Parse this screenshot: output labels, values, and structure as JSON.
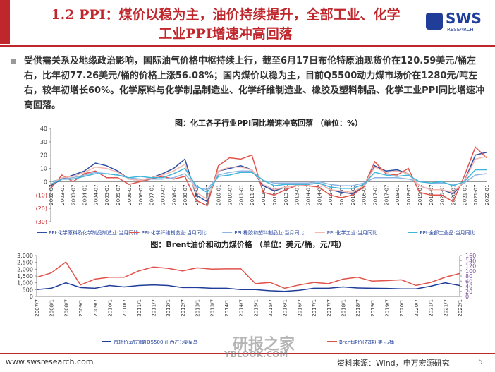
{
  "header": {
    "title_line1": "1.2 PPI：煤价以稳为主，油价持续提升，全部工业、化学",
    "title_line2": "工业PPI增速冲高回落",
    "logo": "SWS",
    "logo_sub": "RESEARCH"
  },
  "body": {
    "paragraph": "受供需关系及地缘政治影响，国际油气价格中枢持续上行，截至6月17日布伦特原油现货价在120.59美元/桶左右，比年初77.26美元/桶的价格上涨56.08%；国内煤价以稳为主，目前Q5500动力煤市场价在1280元/吨左右，较年初增长60%。化学原料与化学制品制造业、化学纤维制造业、橡胶及塑料制品、化学工业PPI同比增速冲高回落。"
  },
  "chart_data": [
    {
      "type": "line",
      "title": "图：化工各子行业PPI同比增速冲高回落 （单位：%）",
      "categories": [
        "2002-07",
        "2003-01",
        "2003-07",
        "2004-01",
        "2004-07",
        "2005-01",
        "2005-07",
        "2006-01",
        "2006-07",
        "2007-01",
        "2007-07",
        "2008-01",
        "2008-07",
        "2009-01",
        "2009-07",
        "2010-01",
        "2010-07",
        "2011-01",
        "2011-07",
        "2012-01",
        "2012-07",
        "2013-01",
        "2013-07",
        "2014-01",
        "2014-07",
        "2015-01",
        "2015-07",
        "2016-01",
        "2016-07",
        "2017-01",
        "2017-07",
        "2018-01",
        "2018-07",
        "2019-01",
        "2019-07",
        "2020-01",
        "2020-07",
        "2021-01",
        "2021-07",
        "2022-01"
      ],
      "ylim": [
        -30,
        40
      ],
      "yticks": [
        40,
        30,
        20,
        10,
        0,
        {
          "value": -10,
          "label": "(10)"
        },
        {
          "value": -20,
          "label": "(20)"
        },
        {
          "value": -30,
          "label": "(30)"
        }
      ],
      "grid": false,
      "series": [
        {
          "name": "PPI:化学原料及化学制品制造业:当月同比",
          "color": "#2f4fa3",
          "values": [
            -3,
            2,
            5,
            8,
            14,
            12,
            8,
            2,
            1,
            3,
            6,
            10,
            17,
            -10,
            -15,
            8,
            10,
            12,
            9,
            -3,
            -7,
            -4,
            -3,
            -2,
            -1,
            -6,
            -8,
            -9,
            -4,
            12,
            8,
            9,
            6,
            -3,
            -6,
            -6,
            -9,
            0,
            20,
            22
          ]
        },
        {
          "name": "PPI:化学纤维制造业:当月同比",
          "color": "#e0524a",
          "values": [
            -5,
            5,
            0,
            6,
            8,
            3,
            3,
            -2,
            0,
            2,
            4,
            2,
            4,
            -14,
            -18,
            12,
            18,
            17,
            20,
            -8,
            -10,
            -6,
            -3,
            -3,
            -4,
            -10,
            -12,
            -10,
            -4,
            15,
            6,
            5,
            10,
            -8,
            -10,
            -10,
            -15,
            4,
            26,
            18
          ]
        },
        {
          "name": "PPI:橡胶和塑料制品业:当月同比",
          "color": "#8fb4e3",
          "values": [
            0,
            2,
            3,
            5,
            7,
            6,
            5,
            3,
            2,
            2,
            2,
            3,
            6,
            -4,
            -6,
            5,
            7,
            8,
            8,
            1,
            -1,
            -1,
            -1,
            -1,
            0,
            -2,
            -3,
            -3,
            -1,
            3,
            3,
            3,
            2,
            0,
            -1,
            -1,
            -2,
            -1,
            5,
            6
          ]
        },
        {
          "name": "PPI:化学工业:当月同比",
          "color": "#f4b8b0",
          "values": [
            -2,
            3,
            4,
            7,
            11,
            10,
            7,
            2,
            1,
            3,
            5,
            8,
            13,
            -8,
            -13,
            8,
            11,
            11,
            9,
            -2,
            -6,
            -4,
            -3,
            -2,
            -1,
            -6,
            -7,
            -8,
            -3,
            11,
            7,
            8,
            6,
            -3,
            -6,
            -6,
            -8,
            0,
            17,
            19
          ]
        },
        {
          "name": "PPI:全部工业品:当月同比",
          "color": "#3fb6d9",
          "values": [
            -2,
            2,
            2,
            4,
            6,
            6,
            5,
            3,
            4,
            3,
            3,
            6,
            10,
            -3,
            -8,
            4,
            5,
            7,
            7,
            1,
            -3,
            -2,
            -2,
            -2,
            -1,
            -4,
            -5,
            -5,
            -2,
            7,
            5,
            4,
            5,
            0,
            -1,
            0,
            -3,
            0,
            9,
            9
          ]
        }
      ]
    },
    {
      "type": "line",
      "title": "图：Brent油价和动力煤价格 （单位：美元/桶，元/吨）",
      "categories": [
        "2007/7",
        "2008/1",
        "2008/7",
        "2009/1",
        "2009/7",
        "2010/1",
        "2010/7",
        "2011/1",
        "2011/7",
        "2012/1",
        "2012/7",
        "2013/1",
        "2013/7",
        "2014/1",
        "2014/7",
        "2015/1",
        "2015/7",
        "2016/1",
        "2016/7",
        "2017/1",
        "2017/7",
        "2018/1",
        "2018/7",
        "2019/1",
        "2019/7",
        "2020/1",
        "2020/7",
        "2021/1",
        "2021/7",
        "2022/1"
      ],
      "ylim": [
        0,
        3000
      ],
      "yticks": [
        0,
        500,
        {
          "value": 1000,
          "label": "1,000"
        },
        {
          "value": 1500,
          "label": "1,500"
        },
        {
          "value": 2000,
          "label": "2,000"
        },
        {
          "value": 2500,
          "label": "2,500"
        },
        {
          "value": 3000,
          "label": "3,000"
        }
      ],
      "y2lim": [
        0,
        160
      ],
      "y2ticks": [
        0,
        20,
        40,
        60,
        80,
        100,
        120,
        140,
        160
      ],
      "grid": false,
      "series": [
        {
          "name": "市场价:动力煤(Q5500,山西产):秦皇岛",
          "color": "#1f3d99",
          "values": [
            500,
            600,
            1000,
            650,
            600,
            800,
            700,
            800,
            850,
            800,
            650,
            650,
            600,
            600,
            500,
            500,
            420,
            370,
            450,
            600,
            600,
            700,
            620,
            600,
            590,
            560,
            560,
            750,
            1000,
            800
          ]
        },
        {
          "name": "Brent油价(右轴) 美元/桶",
          "color": "#e0524a",
          "axis": "y2",
          "values": [
            75,
            92,
            135,
            45,
            68,
            75,
            75,
            100,
            115,
            110,
            100,
            112,
            107,
            108,
            108,
            50,
            55,
            32,
            45,
            55,
            50,
            68,
            75,
            60,
            62,
            65,
            43,
            55,
            75,
            90
          ]
        }
      ]
    }
  ],
  "watermark": {
    "text": "研报之家",
    "url": "YBLOOK.COM"
  },
  "footer": {
    "url": "www.swsresearch.com",
    "source": "资料来源：Wind，申万宏源研究",
    "page": "5"
  }
}
